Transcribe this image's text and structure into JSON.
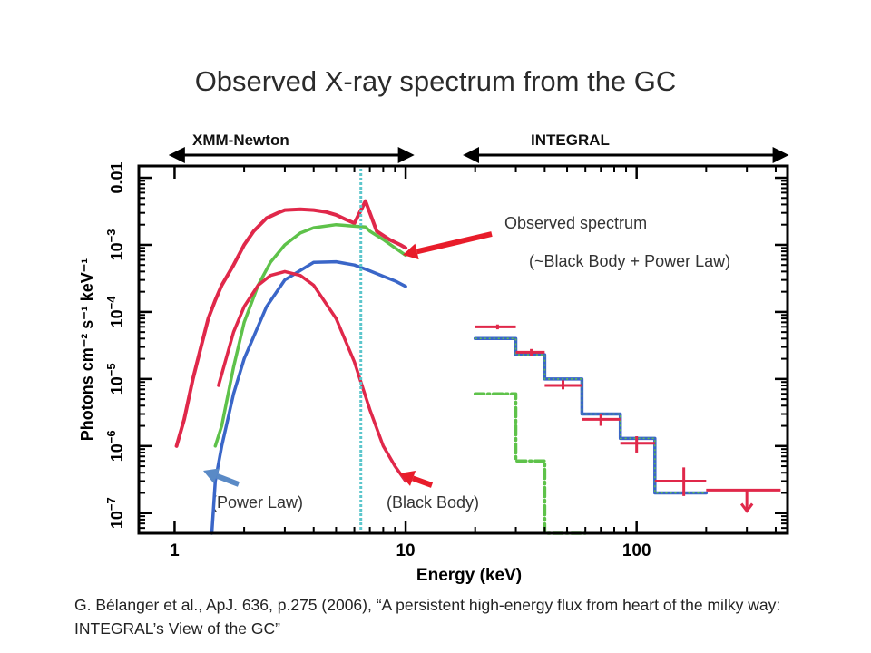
{
  "slide": {
    "title": "Observed X-ray spectrum  from the GC",
    "citation": "G. Bélanger et al., ApJ. 636, p.275 (2006), “A persistent high-energy flux from heart of the milky way: INTEGRAL’s View of the GC”"
  },
  "instruments": [
    {
      "name": "XMM-Newton",
      "range_kev": [
        1.0,
        10.0
      ]
    },
    {
      "name": "INTEGRAL",
      "range_kev": [
        20.0,
        450.0
      ]
    }
  ],
  "annotations": {
    "observed": "Observed spectrum",
    "observed_model": "(~Black Body + Power Law)",
    "power_law": "(Power Law)",
    "black_body": "(Black Body)"
  },
  "colors": {
    "observed": "#e0284a",
    "total_model": "#5ec24a",
    "power_law": "#3a66c8",
    "black_body": "#e0284a",
    "iron_line": "#5cc6cc",
    "arrow_red": "#e81c2a",
    "arrow_blue": "#5a8ac6"
  },
  "chart_data": {
    "type": "line",
    "xlabel": "Energy (keV)",
    "ylabel": "Photons cm⁻² s⁻¹ keV⁻¹",
    "xscale": "log",
    "yscale": "log",
    "xlim": [
      0.7,
      450
    ],
    "ylim": [
      5e-08,
      0.015
    ],
    "x_ticks": [
      {
        "v": 1,
        "label": "1"
      },
      {
        "v": 10,
        "label": "10"
      },
      {
        "v": 100,
        "label": "100"
      }
    ],
    "y_ticks": [
      {
        "v": 1e-07,
        "base": "10",
        "exp": "−7"
      },
      {
        "v": 1e-06,
        "base": "10",
        "exp": "−6"
      },
      {
        "v": 1e-05,
        "base": "10",
        "exp": "−5"
      },
      {
        "v": 0.0001,
        "base": "10",
        "exp": "−4"
      },
      {
        "v": 0.001,
        "base": "10",
        "exp": "−3"
      },
      {
        "v": 0.01,
        "base": "0.01",
        "exp": ""
      }
    ],
    "series": [
      {
        "key": "observed",
        "x": [
          1.02,
          1.1,
          1.2,
          1.3,
          1.4,
          1.5,
          1.6,
          1.8,
          2.0,
          2.2,
          2.5,
          2.8,
          3.0,
          3.5,
          4.0,
          4.5,
          5.0,
          5.5,
          6.0,
          6.7,
          7.5,
          8.5,
          9.5,
          10.0
        ],
        "y": [
          1e-06,
          2.5e-06,
          1e-05,
          3e-05,
          8e-05,
          0.00015,
          0.00025,
          0.0005,
          0.001,
          0.0016,
          0.0025,
          0.003,
          0.0033,
          0.0034,
          0.0033,
          0.0031,
          0.0028,
          0.0024,
          0.0021,
          0.0045,
          0.0016,
          0.0012,
          0.001,
          0.0009
        ]
      },
      {
        "key": "total_model",
        "x": [
          1.5,
          1.6,
          1.8,
          2.0,
          2.3,
          2.6,
          3.0,
          3.5,
          4.0,
          5.0,
          6.0,
          6.7,
          7.0,
          8.0,
          9.0,
          10.0
        ],
        "y": [
          1e-06,
          2e-06,
          1.5e-05,
          7e-05,
          0.00025,
          0.00055,
          0.001,
          0.0015,
          0.0018,
          0.002,
          0.0019,
          0.00185,
          0.0016,
          0.0012,
          0.0009,
          0.0007
        ]
      },
      {
        "key": "power_law",
        "x": [
          1.45,
          1.5,
          1.6,
          1.8,
          2.0,
          2.5,
          3.0,
          4.0,
          5.0,
          6.0,
          7.0,
          8.0,
          9.0,
          10.0
        ],
        "y": [
          5e-08,
          3e-07,
          1e-06,
          6e-06,
          2e-05,
          0.00012,
          0.0003,
          0.00055,
          0.00056,
          0.0005,
          0.00041,
          0.00034,
          0.00029,
          0.00024
        ]
      },
      {
        "key": "black_body",
        "x": [
          1.55,
          1.8,
          2.0,
          2.3,
          2.6,
          3.0,
          3.5,
          4.0,
          5.0,
          6.0,
          7.0,
          8.0,
          9.0,
          10.0
        ],
        "y": [
          8e-06,
          5e-05,
          0.00012,
          0.00025,
          0.00035,
          0.0004,
          0.00035,
          0.00025,
          8e-05,
          1.8e-05,
          3.5e-06,
          1e-06,
          5e-07,
          3e-07
        ]
      },
      {
        "key": "bb_highenergy_model",
        "style": "dashdot",
        "x": [
          20,
          30,
          30,
          40,
          40,
          60
        ],
        "y": [
          6e-06,
          6e-06,
          6e-07,
          6e-07,
          5e-08,
          5e-08
        ]
      },
      {
        "key": "total_highenergy_model",
        "style": "step",
        "x": [
          20,
          30,
          30,
          40,
          40,
          58,
          58,
          85,
          85,
          120,
          120,
          200
        ],
        "y": [
          4e-05,
          4e-05,
          2.3e-05,
          2.3e-05,
          1e-05,
          1e-05,
          3e-06,
          3e-06,
          1.3e-06,
          1.3e-06,
          2e-07,
          2e-07
        ]
      }
    ],
    "integral_points": [
      {
        "e": 25,
        "e_lo": 20,
        "e_hi": 30,
        "flux": 6e-05,
        "flux_lo": 5.5e-05,
        "flux_hi": 6.5e-05
      },
      {
        "e": 35,
        "e_lo": 30,
        "e_hi": 40,
        "flux": 2.5e-05,
        "flux_lo": 2.2e-05,
        "flux_hi": 2.8e-05
      },
      {
        "e": 48,
        "e_lo": 40,
        "e_hi": 58,
        "flux": 8e-06,
        "flux_lo": 7e-06,
        "flux_hi": 9.5e-06
      },
      {
        "e": 70,
        "e_lo": 58,
        "e_hi": 85,
        "flux": 2.5e-06,
        "flux_lo": 2e-06,
        "flux_hi": 3e-06
      },
      {
        "e": 100,
        "e_lo": 85,
        "e_hi": 120,
        "flux": 1.1e-06,
        "flux_lo": 8e-07,
        "flux_hi": 1.4e-06
      },
      {
        "e": 160,
        "e_lo": 120,
        "e_hi": 200,
        "flux": 3e-07,
        "flux_lo": 1.8e-07,
        "flux_hi": 4.8e-07
      },
      {
        "e": 300,
        "e_lo": 200,
        "e_hi": 420,
        "flux": 2.2e-07,
        "upper_limit": true
      }
    ],
    "iron_line_kev": 6.4
  }
}
